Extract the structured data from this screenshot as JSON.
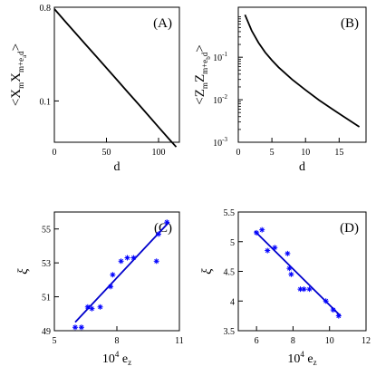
{
  "chart_data": [
    {
      "type": "line",
      "tag": "(A)",
      "xlabel": "d",
      "ylabel_parts": [
        "<X",
        "m",
        "X",
        "m+e",
        "a",
        "d",
        ">"
      ],
      "xlim": [
        0,
        120
      ],
      "ylim": [
        0.04,
        0.8
      ],
      "yscale": "log",
      "xticks": [
        0,
        50,
        100
      ],
      "yticks": [
        0.1,
        0.8
      ],
      "ytick_labels": [
        "0.1",
        "0.8"
      ],
      "series": [
        {
          "x": [
            0,
            10,
            20,
            30,
            40,
            50,
            60,
            70,
            80,
            90,
            100,
            110,
            117
          ],
          "y": [
            0.77,
            0.59,
            0.455,
            0.35,
            0.27,
            0.208,
            0.16,
            0.123,
            0.095,
            0.073,
            0.056,
            0.043,
            0.036
          ]
        }
      ]
    },
    {
      "type": "line",
      "tag": "(B)",
      "xlabel": "d",
      "ylabel_parts": [
        "<Z",
        "m",
        "Z",
        "m+e",
        "b",
        "d",
        ">"
      ],
      "xlim": [
        0,
        19
      ],
      "ylim": [
        0.001,
        1.5
      ],
      "yscale": "log",
      "xticks": [
        0,
        5,
        10,
        15
      ],
      "yticks": [
        0.001,
        0.01,
        0.1
      ],
      "ytick_labels": [
        "10",
        "10",
        "10"
      ],
      "ytick_exponents": [
        "-3",
        "-2",
        "-1"
      ],
      "series": [
        {
          "x": [
            1,
            2,
            3,
            4,
            5,
            6,
            8,
            10,
            12,
            14,
            16,
            18
          ],
          "y": [
            1.0,
            0.42,
            0.22,
            0.13,
            0.085,
            0.058,
            0.03,
            0.017,
            0.0098,
            0.006,
            0.0037,
            0.0023
          ]
        }
      ]
    },
    {
      "type": "scatter",
      "tag": "(C)",
      "xlabel_parts": [
        "10",
        "4",
        " e",
        "z"
      ],
      "ylabel": "ξ",
      "xlim": [
        5,
        11
      ],
      "ylim": [
        49,
        56
      ],
      "xticks": [
        5,
        8,
        11
      ],
      "yticks": [
        49,
        51,
        53,
        55
      ],
      "points": {
        "x": [
          6.0,
          6.3,
          6.6,
          6.8,
          7.2,
          7.7,
          7.8,
          8.2,
          8.5,
          8.8,
          9.9,
          10.0,
          10.4
        ],
        "y": [
          49.2,
          49.2,
          50.4,
          50.3,
          50.4,
          51.6,
          52.3,
          53.1,
          53.3,
          53.3,
          53.1,
          54.7,
          55.4
        ]
      },
      "fit": {
        "x": [
          6.0,
          10.5
        ],
        "y": [
          49.5,
          55.4
        ]
      }
    },
    {
      "type": "scatter",
      "tag": "(D)",
      "xlabel_parts": [
        "10",
        "4",
        " e",
        "z"
      ],
      "ylabel": "ξ",
      "xlim": [
        5,
        12
      ],
      "ylim": [
        3.5,
        5.5
      ],
      "xticks": [
        6,
        8,
        10,
        12
      ],
      "yticks": [
        3.5,
        4,
        4.5,
        5,
        5.5
      ],
      "points": {
        "x": [
          6.0,
          6.3,
          6.6,
          7.0,
          7.7,
          7.8,
          7.9,
          8.4,
          8.6,
          8.9,
          9.8,
          10.2,
          10.5
        ],
        "y": [
          5.15,
          5.2,
          4.85,
          4.9,
          4.8,
          4.55,
          4.45,
          4.2,
          4.2,
          4.2,
          4.0,
          3.85,
          3.75
        ]
      },
      "fit": {
        "x": [
          5.9,
          10.6
        ],
        "y": [
          5.18,
          3.75
        ]
      }
    }
  ]
}
